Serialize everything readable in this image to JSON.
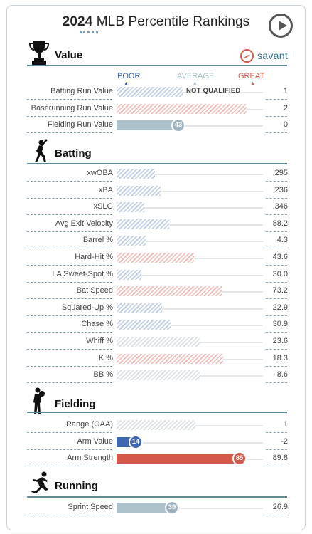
{
  "header": {
    "year": "2024",
    "title": "MLB Percentile Rankings"
  },
  "brand": {
    "name": "savant"
  },
  "scale": {
    "poor": "POOR",
    "average": "AVERAGE",
    "great": "GREAT"
  },
  "colors": {
    "poor": "#3e66b1",
    "average": "#a7bec8",
    "great": "#d3594a",
    "section_line": "#5f8a98"
  },
  "sections": [
    {
      "title": "Value",
      "icon": "trophy-icon",
      "rows": [
        {
          "label": "Batting Run Value",
          "value": "1",
          "percentile": null,
          "status": "NOT QUALIFIED",
          "style": "hatch-blue",
          "fill": 0.45
        },
        {
          "label": "Baserunning Run Value",
          "value": "2",
          "percentile": null,
          "style": "hatch-red",
          "fill": 0.89
        },
        {
          "label": "Fielding Run Value",
          "value": "0",
          "percentile": "43",
          "style": "solid",
          "color": "#aec2cc",
          "fill": 0.43
        }
      ]
    },
    {
      "title": "Batting",
      "icon": "batter-icon",
      "rows": [
        {
          "label": "xwOBA",
          "value": ".295",
          "style": "hatch-blue",
          "fill": 0.26
        },
        {
          "label": "xBA",
          "value": ".236",
          "style": "hatch-blue",
          "fill": 0.3
        },
        {
          "label": "xSLG",
          "value": ".346",
          "style": "hatch-blue",
          "fill": 0.19
        },
        {
          "label": "Avg Exit Velocity",
          "value": "88.2",
          "style": "hatch-blue",
          "fill": 0.36
        },
        {
          "label": "Barrel %",
          "value": "4.3",
          "style": "hatch-blue",
          "fill": 0.2
        },
        {
          "label": "Hard-Hit %",
          "value": "43.6",
          "style": "hatch-red",
          "fill": 0.53
        },
        {
          "label": "LA Sweet-Spot %",
          "value": "30.0",
          "style": "hatch-blue",
          "fill": 0.17
        },
        {
          "label": "Bat Speed",
          "value": "73.2",
          "style": "hatch-red",
          "fill": 0.72
        },
        {
          "label": "Squared-Up %",
          "value": "22.9",
          "style": "hatch-blue",
          "fill": 0.31
        },
        {
          "label": "Chase %",
          "value": "30.9",
          "style": "hatch-blue",
          "fill": 0.37
        },
        {
          "label": "Whiff %",
          "value": "23.6",
          "style": "hatch-pale",
          "fill": 0.57
        },
        {
          "label": "K %",
          "value": "18.3",
          "style": "hatch-red",
          "fill": 0.73
        },
        {
          "label": "BB %",
          "value": "8.6",
          "style": "hatch-pale",
          "fill": 0.57
        }
      ]
    },
    {
      "title": "Fielding",
      "icon": "fielder-icon",
      "rows": [
        {
          "label": "Range (OAA)",
          "value": "1",
          "style": "hatch-pale",
          "fill": 0.54
        },
        {
          "label": "Arm Value",
          "value": "-2",
          "percentile": "14",
          "style": "solid",
          "color": "#3e66b1",
          "fill": 0.14
        },
        {
          "label": "Arm Strength",
          "value": "89.8",
          "percentile": "85",
          "style": "solid",
          "color": "#d3594a",
          "fill": 0.85
        }
      ]
    },
    {
      "title": "Running",
      "icon": "runner-icon",
      "rows": [
        {
          "label": "Sprint Speed",
          "value": "26.9",
          "percentile": "39",
          "style": "solid",
          "color": "#aec2cc",
          "fill": 0.39
        }
      ]
    }
  ]
}
